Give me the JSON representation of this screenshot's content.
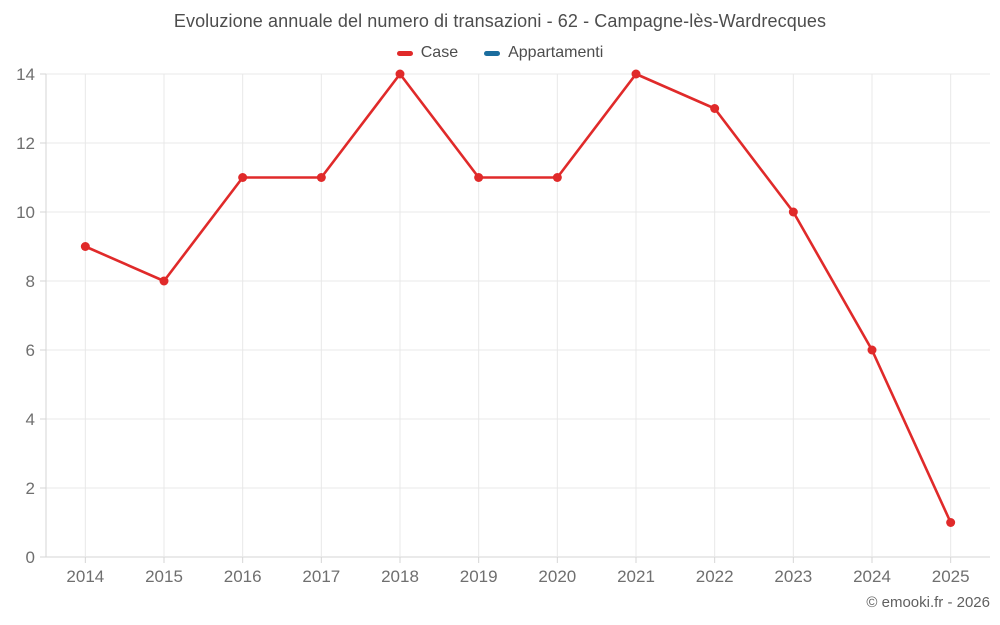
{
  "chart_data": {
    "type": "line",
    "title": "Evoluzione annuale del numero di transazioni - 62 - Campagne-lès-Wardrecques",
    "categories": [
      "2014",
      "2015",
      "2016",
      "2017",
      "2018",
      "2019",
      "2020",
      "2021",
      "2022",
      "2023",
      "2024",
      "2025"
    ],
    "series": [
      {
        "name": "Case",
        "color": "#e02a2a",
        "values": [
          9,
          8,
          11,
          11,
          14,
          11,
          11,
          14,
          13,
          10,
          6,
          1
        ]
      },
      {
        "name": "Appartamenti",
        "color": "#1b6d9e",
        "values": []
      }
    ],
    "xlabel": "",
    "ylabel": "",
    "ylim": [
      0,
      14
    ],
    "y_ticks": [
      0,
      2,
      4,
      6,
      8,
      10,
      12,
      14
    ],
    "grid": true,
    "legend_position": "top",
    "marker": "circle",
    "footer": "© emooki.fr - 2026"
  },
  "colors": {
    "gridline": "#e8e8e8",
    "axis_line": "#d6d6d6",
    "axis_text": "#6f6f6f",
    "title_text": "#4d4d4d",
    "footer_text": "#606060",
    "background": "#ffffff"
  }
}
